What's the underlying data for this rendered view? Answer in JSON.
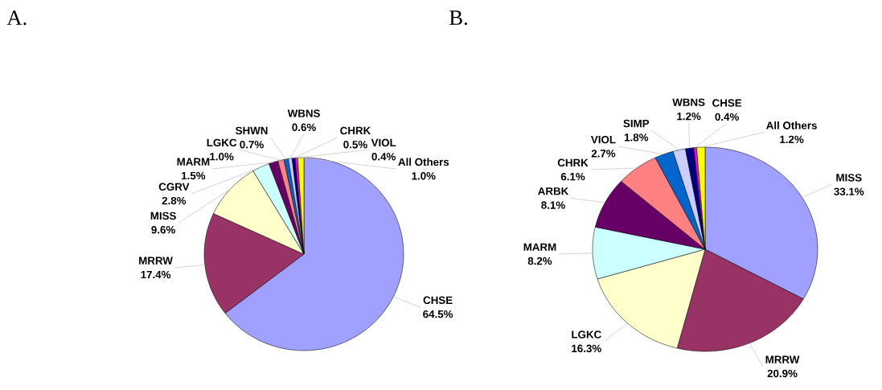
{
  "chart_data": [
    {
      "type": "pie",
      "title": "A.",
      "categories": [
        "CHSE",
        "MRRW",
        "MISS",
        "CGRV",
        "MARM",
        "LGKC",
        "SHWN",
        "WBNS",
        "CHRK",
        "VIOL",
        "All Others"
      ],
      "values": [
        64.5,
        17.4,
        9.6,
        2.8,
        1.5,
        1.0,
        0.7,
        0.6,
        0.5,
        0.4,
        1.0
      ],
      "value_labels": [
        "64.5%",
        "17.4%",
        "9.6%",
        "2.8%",
        "1.5%",
        "1.0%",
        "0.7%",
        "0.6%",
        "0.5%",
        "0.4%",
        "1.0%"
      ],
      "colors": [
        "#a0a0ff",
        "#993366",
        "#ffffcc",
        "#ccffff",
        "#660066",
        "#ff8080",
        "#0066cc",
        "#ccccff",
        "#000080",
        "#ff00ff",
        "#ffff00"
      ]
    },
    {
      "type": "pie",
      "title": "B.",
      "categories": [
        "MISS",
        "MRRW",
        "LGKC",
        "MARM",
        "ARBK",
        "CHRK",
        "VIOL",
        "SIMP",
        "WBNS",
        "CHSE",
        "All Others"
      ],
      "values": [
        33.1,
        20.9,
        16.3,
        8.2,
        8.1,
        6.1,
        2.7,
        1.8,
        1.2,
        0.4,
        1.2
      ],
      "value_labels": [
        "33.1%",
        "20.9%",
        "16.3%",
        "8.2%",
        "8.1%",
        "6.1%",
        "2.7%",
        "1.8%",
        "1.2%",
        "0.4%",
        "1.2%"
      ],
      "colors": [
        "#a0a0ff",
        "#993366",
        "#ffffcc",
        "#ccffff",
        "#660066",
        "#ff8080",
        "#0066cc",
        "#ccccff",
        "#000080",
        "#ff00ff",
        "#ffff00"
      ]
    }
  ]
}
